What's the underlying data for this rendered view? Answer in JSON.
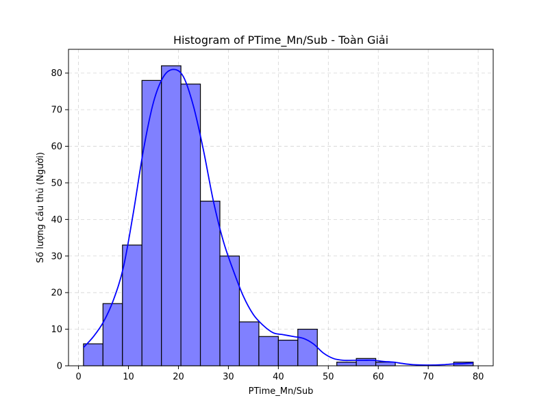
{
  "chart_data": {
    "type": "bar",
    "title": "Histogram of PTime_Mn/Sub - Toàn Giải",
    "xlabel": "PTime_Mn/Sub",
    "ylabel": "Số lượng cầu thủ (Người)",
    "xlim": [
      -2,
      83
    ],
    "ylim": [
      0,
      86.5
    ],
    "xticks": [
      0,
      10,
      20,
      30,
      40,
      50,
      60,
      70,
      80
    ],
    "yticks": [
      0,
      10,
      20,
      30,
      40,
      50,
      60,
      70,
      80
    ],
    "grid": true,
    "bar_color": "#8080ff",
    "kde_color": "#0000ff",
    "bin_edges": [
      1,
      4.9,
      8.8,
      12.7,
      16.6,
      20.5,
      24.4,
      28.3,
      32.2,
      36.1,
      40.0,
      43.9,
      47.8,
      51.7,
      55.6,
      59.5,
      63.4,
      67.3,
      71.2,
      75.1,
      79.0
    ],
    "counts": [
      6,
      17,
      33,
      78,
      82,
      77,
      45,
      30,
      12,
      8,
      7,
      10,
      0,
      1,
      2,
      1,
      0,
      0,
      0,
      1
    ],
    "kde": {
      "x": [
        1,
        3,
        5,
        7,
        9,
        11,
        13,
        15,
        17,
        19,
        21,
        23,
        25,
        27,
        29,
        31,
        33,
        35,
        37,
        39,
        41,
        43,
        45,
        47,
        49,
        51,
        53,
        55,
        57,
        59,
        61,
        63,
        65,
        67,
        69,
        71,
        73,
        75,
        77,
        79
      ],
      "y": [
        5,
        8,
        12,
        18,
        27,
        42,
        59,
        72,
        79,
        81,
        79,
        71,
        59,
        45,
        34,
        26,
        19,
        14,
        11,
        9,
        8.5,
        8,
        7.5,
        6,
        3.5,
        2,
        1.5,
        1.5,
        1.5,
        1.5,
        1.2,
        1,
        0.6,
        0.3,
        0.2,
        0.2,
        0.3,
        0.5,
        0.6,
        0.8
      ]
    }
  }
}
